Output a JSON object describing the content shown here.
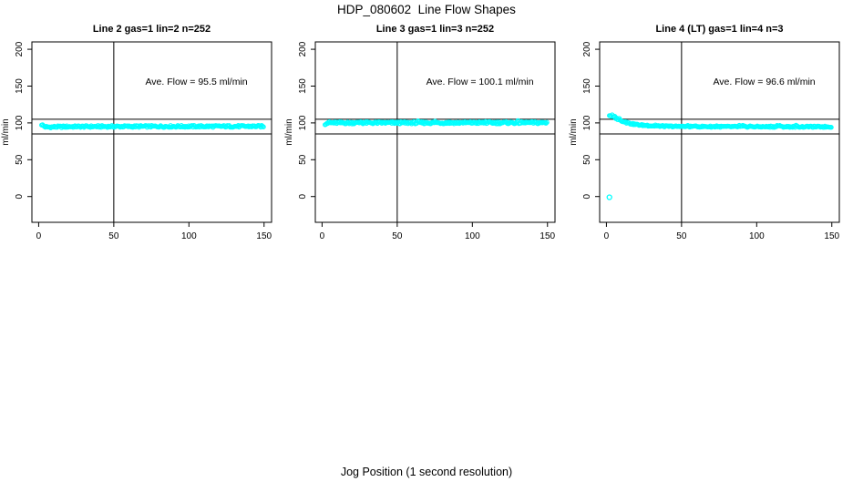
{
  "page": {
    "title": "HDP_080602  Line Flow Shapes",
    "xlabel": "Jog Position (1 second resolution)"
  },
  "colors": {
    "points": "#00ffff",
    "axis": "#000000",
    "text": "#000000",
    "background": "#ffffff"
  },
  "chart_data": [
    {
      "type": "scatter",
      "title": "Line 2 gas=1 lin=2 n=252",
      "n": 252,
      "ave_flow": 95.5,
      "annotation": {
        "text": "Ave. Flow =  95.5  ml/min",
        "x": 105,
        "y": 152
      },
      "ylabel": "ml/min",
      "xlim": [
        -4.5,
        155
      ],
      "ylim": [
        -35,
        210
      ],
      "xticks": [
        0,
        50,
        100,
        150
      ],
      "yticks": [
        0,
        50,
        100,
        150,
        200
      ],
      "ref_lines_y": [
        105,
        85
      ],
      "vline_x": 50,
      "series": {
        "x_start": 2,
        "x_end": 150,
        "x_step": 0.6,
        "trend": [
          [
            2,
            97.8
          ],
          [
            3,
            96.2
          ],
          [
            4,
            94.9
          ],
          [
            6,
            94.3
          ],
          [
            10,
            94.6
          ],
          [
            20,
            95.0
          ],
          [
            60,
            95.2
          ],
          [
            150,
            95.4
          ]
        ],
        "jitter": 1.3,
        "spikes": false
      },
      "outliers": []
    },
    {
      "type": "scatter",
      "title": "Line 3 gas=1 lin=3 n=252",
      "n": 252,
      "ave_flow": 100.1,
      "annotation": {
        "text": "Ave. Flow =  100.1  ml/min",
        "x": 105,
        "y": 152
      },
      "ylabel": "ml/min",
      "xlim": [
        -4.5,
        155
      ],
      "ylim": [
        -35,
        210
      ],
      "xticks": [
        0,
        50,
        100,
        150
      ],
      "yticks": [
        0,
        50,
        100,
        150,
        200
      ],
      "ref_lines_y": [
        105,
        85
      ],
      "vline_x": 50,
      "series": {
        "x_start": 2,
        "x_end": 150,
        "x_step": 0.6,
        "trend": [
          [
            2,
            99.0
          ],
          [
            3,
            99.8
          ],
          [
            6,
            100.1
          ],
          [
            150,
            100.3
          ]
        ],
        "jitter": 1.5,
        "spikes": true
      },
      "outliers": []
    },
    {
      "type": "scatter",
      "title": "Line 4 (LT) gas=1 lin=4 n=3",
      "n": 3,
      "ave_flow": 96.6,
      "annotation": {
        "text": "Ave. Flow =  96.6  ml/min",
        "x": 105,
        "y": 152
      },
      "ylabel": "ml/min",
      "xlim": [
        -4.5,
        155
      ],
      "ylim": [
        -35,
        210
      ],
      "xticks": [
        0,
        50,
        100,
        150
      ],
      "yticks": [
        0,
        50,
        100,
        150,
        200
      ],
      "ref_lines_y": [
        105,
        85
      ],
      "vline_x": 50,
      "series": {
        "x_start": 2,
        "x_end": 150,
        "x_step": 0.6,
        "trend": [
          [
            2,
            110.3
          ],
          [
            3,
            109.6
          ],
          [
            5,
            107.8
          ],
          [
            8,
            104.8
          ],
          [
            12,
            101.3
          ],
          [
            16,
            99.0
          ],
          [
            22,
            97.2
          ],
          [
            30,
            96.0
          ],
          [
            45,
            95.2
          ],
          [
            80,
            94.9
          ],
          [
            150,
            94.8
          ]
        ],
        "jitter": 0.9,
        "spikes": true
      },
      "outliers": [
        [
          2,
          -1
        ]
      ]
    }
  ]
}
